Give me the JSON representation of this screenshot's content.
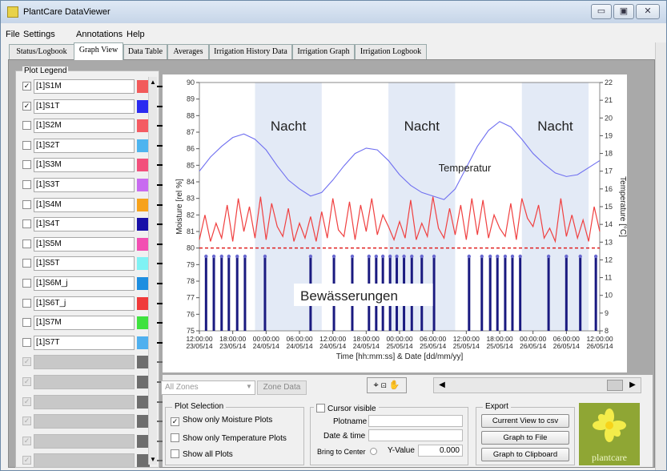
{
  "window": {
    "title": "PlantCare DataViewer",
    "min": "▭",
    "max": "▣",
    "close": "✕"
  },
  "menu": [
    "File",
    "Settings",
    "Annotations",
    "Help"
  ],
  "tabs": [
    {
      "label": "Status/Logbook"
    },
    {
      "label": "Graph View"
    },
    {
      "label": "Data Table"
    },
    {
      "label": "Averages"
    },
    {
      "label": "Irrigation History Data"
    },
    {
      "label": "Irrigation Graph"
    },
    {
      "label": "Irrigation Logbook"
    }
  ],
  "legend": {
    "title": "Plot Legend",
    "items": [
      {
        "label": "[1]S1M",
        "checked": true,
        "color": "#f25b5b",
        "line": "#000000"
      },
      {
        "label": "[1]S1T",
        "checked": true,
        "color": "#2b2bf0",
        "line": "#000000"
      },
      {
        "label": "[1]S2M",
        "checked": false,
        "color": "#f45b62",
        "line": "#000000"
      },
      {
        "label": "[1]S2T",
        "checked": false,
        "color": "#4db4ef",
        "line": "#000000"
      },
      {
        "label": "[1]S3M",
        "checked": false,
        "color": "#f2507c",
        "line": "#000000"
      },
      {
        "label": "[1]S3T",
        "checked": false,
        "color": "#c86bf0",
        "line": "#000000"
      },
      {
        "label": "[1]S4M",
        "checked": false,
        "color": "#f7a21b",
        "line": "#000000"
      },
      {
        "label": "[1]S4T",
        "checked": false,
        "color": "#1810a8",
        "line": "#000000"
      },
      {
        "label": "[1]S5M",
        "checked": false,
        "color": "#f24fb2",
        "line": "#000000"
      },
      {
        "label": "[1]S5T",
        "checked": false,
        "color": "#7ff2f4",
        "line": "#000000"
      },
      {
        "label": "[1]S6M_j",
        "checked": false,
        "color": "#1d8ee0",
        "line": "#000000"
      },
      {
        "label": "[1]S6T_j",
        "checked": false,
        "color": "#f03a3a",
        "line": "#000000"
      },
      {
        "label": "[1]S7M",
        "checked": false,
        "color": "#3fe23f",
        "line": "#000000"
      },
      {
        "label": "[1]S7T",
        "checked": false,
        "color": "#4fb0ef",
        "line": "#000000"
      },
      {
        "label": "",
        "checked": true,
        "color": "#6e6e6e",
        "line": "#000000",
        "dim": true
      },
      {
        "label": "",
        "checked": true,
        "color": "#6e6e6e",
        "line": "#000000",
        "dim": true
      },
      {
        "label": "",
        "checked": true,
        "color": "#6e6e6e",
        "line": "#000000",
        "dim": true
      },
      {
        "label": "",
        "checked": true,
        "color": "#6e6e6e",
        "line": "#000000",
        "dim": true
      },
      {
        "label": "",
        "checked": true,
        "color": "#6e6e6e",
        "line": "#000000",
        "dim": true
      },
      {
        "label": "",
        "checked": true,
        "color": "#6e6e6e",
        "line": "#000000",
        "dim": true
      }
    ]
  },
  "chart_data": {
    "type": "line",
    "xlabel": "Time [hh:mm:ss] & Date [dd/mm/yy]",
    "ylabel_left": "Moisture [rel %]",
    "ylabel_right": "Temperature [°C]",
    "ylim_left": [
      75,
      90
    ],
    "ylim_right": [
      8,
      22
    ],
    "x_ticks": [
      {
        "time": "12:00:00",
        "date": "23/05/14"
      },
      {
        "time": "18:00:00",
        "date": "23/05/14"
      },
      {
        "time": "00:00:00",
        "date": "24/05/14"
      },
      {
        "time": "06:00:00",
        "date": "24/05/14"
      },
      {
        "time": "12:00:00",
        "date": "24/05/14"
      },
      {
        "time": "18:00:00",
        "date": "24/05/14"
      },
      {
        "time": "00:00:00",
        "date": "25/05/14"
      },
      {
        "time": "06:00:00",
        "date": "25/05/14"
      },
      {
        "time": "12:00:00",
        "date": "25/05/14"
      },
      {
        "time": "18:00:00",
        "date": "25/05/14"
      },
      {
        "time": "00:00:00",
        "date": "26/05/14"
      },
      {
        "time": "06:00:00",
        "date": "26/05/14"
      },
      {
        "time": "12:00:00",
        "date": "26/05/14"
      }
    ],
    "y_ticks_left": [
      75,
      76,
      77,
      78,
      79,
      80,
      81,
      82,
      83,
      84,
      85,
      86,
      87,
      88,
      89,
      90
    ],
    "y_ticks_right": [
      8,
      9,
      10,
      11,
      12,
      13,
      14,
      15,
      16,
      17,
      18,
      19,
      20,
      21,
      22
    ],
    "x_range_hours": [
      0,
      72
    ],
    "night_bands_hours": [
      [
        10,
        22
      ],
      [
        34,
        46
      ],
      [
        58,
        70
      ]
    ],
    "annotations": {
      "nacht": "Nacht",
      "temperatur": "Temperatur",
      "bewaesserungen": "Bewässerungen"
    },
    "threshold_moisture": 80,
    "temperature": {
      "name": "[1]S1T",
      "color": "#6f6ff0",
      "points": [
        [
          0,
          17.0
        ],
        [
          2,
          17.8
        ],
        [
          4,
          18.4
        ],
        [
          6,
          18.9
        ],
        [
          8,
          19.1
        ],
        [
          10,
          18.8
        ],
        [
          12,
          18.2
        ],
        [
          14,
          17.3
        ],
        [
          16,
          16.5
        ],
        [
          18,
          16.0
        ],
        [
          20,
          15.6
        ],
        [
          22,
          15.8
        ],
        [
          24,
          16.5
        ],
        [
          26,
          17.3
        ],
        [
          28,
          18.0
        ],
        [
          30,
          18.3
        ],
        [
          32,
          18.2
        ],
        [
          34,
          17.6
        ],
        [
          36,
          16.8
        ],
        [
          38,
          16.2
        ],
        [
          40,
          15.8
        ],
        [
          42,
          15.6
        ],
        [
          44,
          15.4
        ],
        [
          46,
          16.0
        ],
        [
          48,
          17.2
        ],
        [
          50,
          18.4
        ],
        [
          52,
          19.3
        ],
        [
          54,
          19.8
        ],
        [
          56,
          19.5
        ],
        [
          58,
          18.8
        ],
        [
          60,
          18.0
        ],
        [
          62,
          17.4
        ],
        [
          64,
          16.9
        ],
        [
          66,
          16.7
        ],
        [
          68,
          16.8
        ],
        [
          70,
          17.2
        ],
        [
          72,
          17.6
        ]
      ]
    },
    "moisture": {
      "name": "[1]S1M",
      "color": "#f04040",
      "points": [
        [
          0,
          80.5
        ],
        [
          1,
          82.0
        ],
        [
          2,
          80.4
        ],
        [
          3,
          81.5
        ],
        [
          4,
          80.6
        ],
        [
          5,
          82.6
        ],
        [
          6,
          80.4
        ],
        [
          7,
          83.0
        ],
        [
          8,
          81.0
        ],
        [
          9,
          82.5
        ],
        [
          10,
          80.6
        ],
        [
          11,
          83.1
        ],
        [
          12,
          80.5
        ],
        [
          13,
          82.7
        ],
        [
          14,
          81.3
        ],
        [
          15,
          80.7
        ],
        [
          16,
          82.4
        ],
        [
          17,
          80.4
        ],
        [
          18,
          81.5
        ],
        [
          19,
          80.6
        ],
        [
          20,
          81.9
        ],
        [
          21,
          80.4
        ],
        [
          22,
          82.2
        ],
        [
          23,
          80.6
        ],
        [
          24,
          83.0
        ],
        [
          25,
          81.1
        ],
        [
          26,
          80.7
        ],
        [
          27,
          82.8
        ],
        [
          28,
          80.5
        ],
        [
          29,
          82.6
        ],
        [
          30,
          81.0
        ],
        [
          31,
          83.0
        ],
        [
          32,
          80.8
        ],
        [
          33,
          82.0
        ],
        [
          34,
          81.3
        ],
        [
          35,
          80.5
        ],
        [
          36,
          81.6
        ],
        [
          37,
          80.6
        ],
        [
          38,
          82.9
        ],
        [
          39,
          80.5
        ],
        [
          40,
          81.5
        ],
        [
          41,
          80.7
        ],
        [
          42,
          83.1
        ],
        [
          43,
          81.2
        ],
        [
          44,
          80.6
        ],
        [
          45,
          82.4
        ],
        [
          46,
          80.8
        ],
        [
          47,
          82.6
        ],
        [
          48,
          80.5
        ],
        [
          49,
          83.0
        ],
        [
          50,
          80.8
        ],
        [
          51,
          82.9
        ],
        [
          52,
          80.6
        ],
        [
          53,
          82.0
        ],
        [
          54,
          81.2
        ],
        [
          55,
          80.7
        ],
        [
          56,
          82.7
        ],
        [
          57,
          80.5
        ],
        [
          58,
          83.0
        ],
        [
          59,
          81.8
        ],
        [
          60,
          81.3
        ],
        [
          61,
          82.6
        ],
        [
          62,
          80.6
        ],
        [
          63,
          81.2
        ],
        [
          64,
          80.4
        ],
        [
          65,
          83.0
        ],
        [
          66,
          80.7
        ],
        [
          67,
          82.0
        ],
        [
          68,
          80.6
        ],
        [
          69,
          81.7
        ],
        [
          70,
          80.4
        ],
        [
          71,
          82.5
        ],
        [
          72,
          81.0
        ]
      ]
    },
    "irrigation_events_hours": [
      1.2,
      2.6,
      4.0,
      5.3,
      6.8,
      8.2,
      11.8,
      20.0,
      24.2,
      27.5,
      30.5,
      31.8,
      33.0,
      34.3,
      35.5,
      36.8,
      38.2,
      40.0,
      42.2,
      48.5,
      50.8,
      52.3,
      53.6,
      55.0,
      56.3,
      57.7,
      62.8,
      66.0,
      68.5,
      71.3
    ]
  },
  "controls": {
    "zone_combo": "All Zones",
    "zone_button": "Zone Data",
    "plot_selection": {
      "title": "Plot Selection",
      "options": [
        {
          "label": "Show only Moisture Plots",
          "checked": true
        },
        {
          "label": "Show only Temperature Plots",
          "checked": false
        },
        {
          "label": "Show all Plots",
          "checked": false
        }
      ]
    },
    "cursor": {
      "title": "Cursor visible",
      "plotname_label": "Plotname",
      "date_label": "Date & time",
      "bring_label": "Bring to Center",
      "yvalue_label": "Y-Value",
      "yvalue": "0.000"
    },
    "export": {
      "title": "Export",
      "csv": "Current View to csv",
      "file": "Graph to File",
      "clipboard": "Graph to Clipboard"
    },
    "logo_text": "plantcare"
  }
}
